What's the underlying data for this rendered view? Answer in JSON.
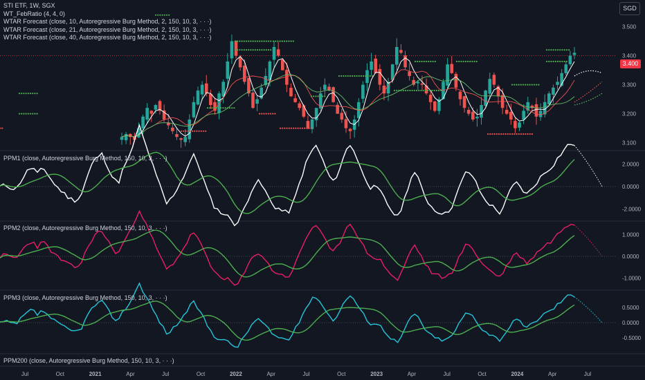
{
  "header": {
    "symbol_line": "STI ETF, 1W, SGX",
    "indicator_lines": [
      "WT_FebRatio (4, 4, 0)",
      "WTAR Forecast (close, 10, Autoregressive Burg Method, 2, 150, 10, 3, · · ·)",
      "WTAR Forecast (close, 21, Autoregressive Burg Method, 2, 150, 10, 3, · · ·)",
      "WTAR Forecast (close, 40, Autoregressive Burg Method, 2, 150, 10, 3, · · ·)"
    ],
    "currency": "SGD",
    "last_price": "3.400"
  },
  "panes": [
    {
      "title": "PPM1 (close, Autoregressive Burg Method, 150, 10, 3, · · ·)"
    },
    {
      "title": "PPM2 (close, Autoregressive Burg Method, 150, 10, 3, · · ·)"
    },
    {
      "title": "PPM3 (close, Autoregressive Burg Method, 150, 10, 3, · · ·)"
    },
    {
      "title": "PPM200 (close, Autoregressive Burg Method, 150, 10, 3, · · ·)"
    }
  ],
  "colors": {
    "background": "#131722",
    "up": "#26a69a",
    "down": "#ef5350",
    "ppm1": "#ffffff",
    "ppm2": "#e91e63",
    "ppm3": "#26c6da",
    "signal": "#4caf50",
    "dots": "#4caf50",
    "grid": "#2a2e39"
  },
  "chart_data": {
    "type": "candlestick",
    "x_axis": {
      "labels": [
        "Jul",
        "Oct",
        "2021",
        "Apr",
        "Jul",
        "Oct",
        "2022",
        "Apr",
        "Jul",
        "Oct",
        "2023",
        "Apr",
        "Jul",
        "Oct",
        "2024",
        "Apr",
        "Jul"
      ]
    },
    "price_pane": {
      "y_ticks": [
        "3.500",
        "3.400",
        "3.300",
        "3.200",
        "3.100"
      ],
      "ylim": [
        3.08,
        3.58
      ],
      "last_price": 3.4,
      "close_path": [
        3.12,
        3.13,
        3.12,
        3.11,
        3.15,
        3.19,
        3.22,
        3.2,
        3.23,
        3.21,
        3.18,
        3.16,
        3.14,
        3.12,
        3.11,
        3.12,
        3.18,
        3.24,
        3.28,
        3.3,
        3.27,
        3.23,
        3.21,
        3.27,
        3.31,
        3.38,
        3.45,
        3.4,
        3.36,
        3.31,
        3.27,
        3.22,
        3.25,
        3.29,
        3.33,
        3.38,
        3.43,
        3.4,
        3.35,
        3.3,
        3.26,
        3.24,
        3.22,
        3.19,
        3.15,
        3.18,
        3.22,
        3.27,
        3.3,
        3.28,
        3.24,
        3.2,
        3.18,
        3.15,
        3.14,
        3.18,
        3.24,
        3.3,
        3.35,
        3.38,
        3.34,
        3.3,
        3.27,
        3.31,
        3.37,
        3.43,
        3.41,
        3.36,
        3.33,
        3.3,
        3.31,
        3.3,
        3.27,
        3.24,
        3.21,
        3.25,
        3.31,
        3.37,
        3.34,
        3.29,
        3.25,
        3.22,
        3.2,
        3.18,
        3.19,
        3.23,
        3.28,
        3.32,
        3.3,
        3.26,
        3.22,
        3.2,
        3.18,
        3.15,
        3.17,
        3.21,
        3.24,
        3.22,
        3.19,
        3.21,
        3.24,
        3.27,
        3.29,
        3.31,
        3.34,
        3.37,
        3.4,
        3.41
      ]
    },
    "ppm1": {
      "y_ticks": [
        "2.0000",
        "0.0000",
        "-2.0000"
      ],
      "ylim": [
        -2.6,
        2.6
      ]
    },
    "ppm2": {
      "y_ticks": [
        "1.0000",
        "0.0000",
        "-1.0000"
      ],
      "ylim": [
        -1.3,
        1.3
      ]
    },
    "ppm3": {
      "y_ticks": [
        "0.5000",
        "0.0000",
        "-0.5000"
      ],
      "ylim": [
        -0.85,
        0.85
      ]
    }
  }
}
